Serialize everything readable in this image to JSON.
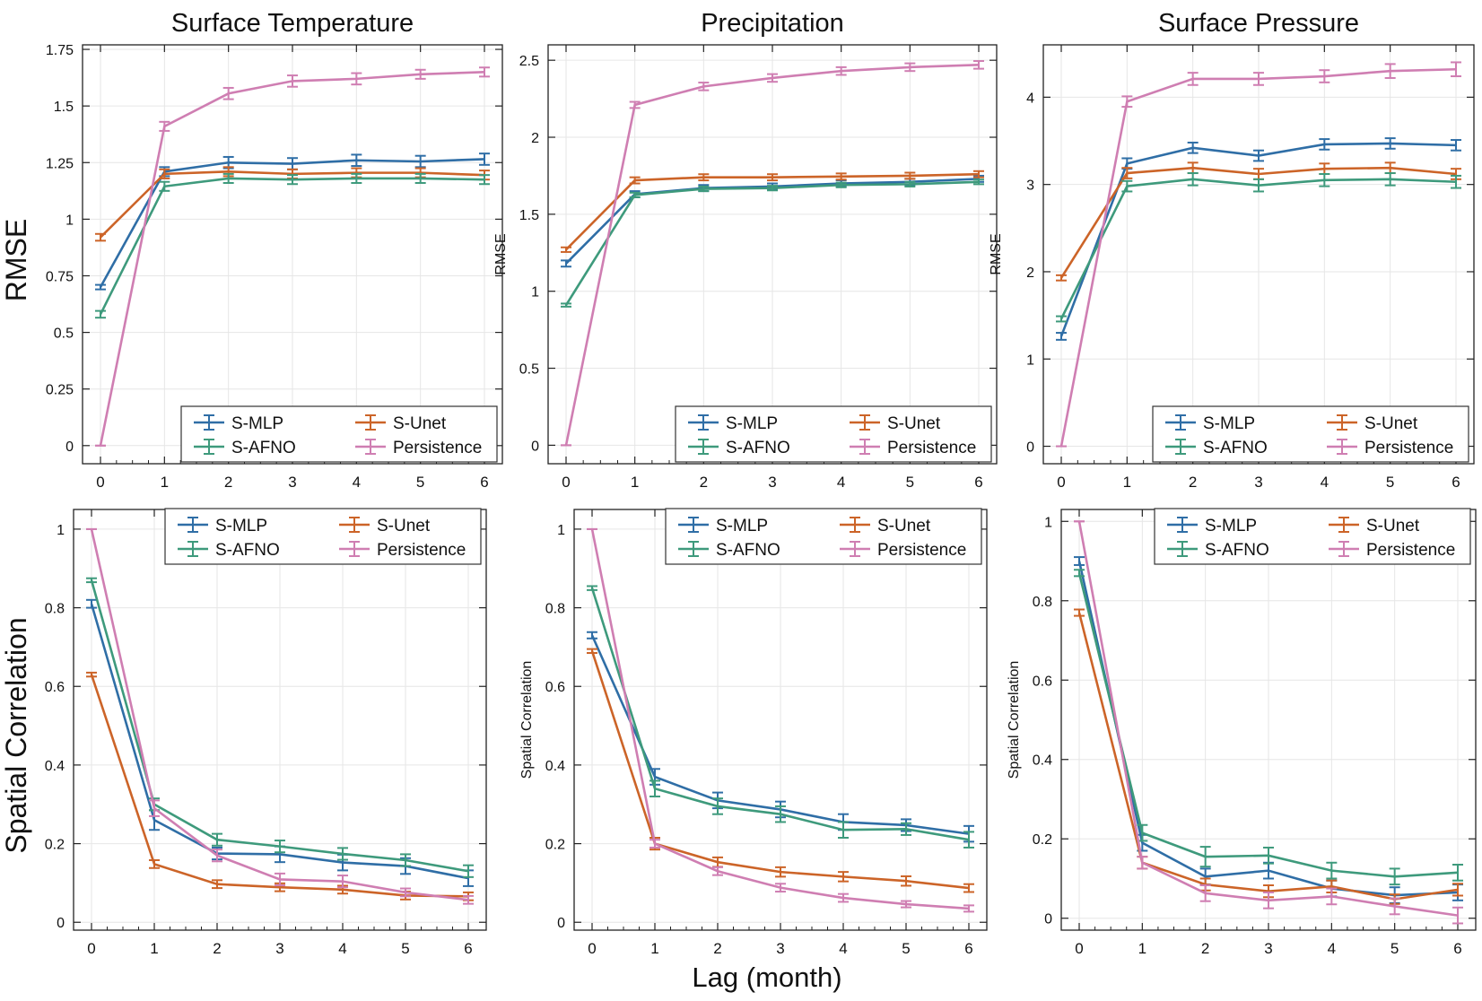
{
  "figure": {
    "row_label_top": "RMSE",
    "row_label_bottom": "Spatial Correlation",
    "xlabel": "Lag (month)"
  },
  "colors": {
    "S-MLP": "#2f6ea6",
    "S-Unet": "#cc6428",
    "S-AFNO": "#3e9a7c",
    "Persistence": "#cf7eb2"
  },
  "legend_labels": [
    "S-MLP",
    "S-Unet",
    "S-AFNO",
    "Persistence"
  ],
  "chart_data": [
    {
      "type": "line",
      "title": "Surface Temperature",
      "xlabel": "",
      "ylabel": "",
      "x": [
        0,
        1,
        2,
        3,
        4,
        5,
        6
      ],
      "ylim": [
        -0.08,
        1.77
      ],
      "yticks": [
        0,
        0.25,
        0.5,
        0.75,
        1,
        1.25,
        1.5,
        1.75
      ],
      "ytick_labels": [
        "0",
        "0.25",
        "0.5",
        "0.75",
        "1",
        "1.25",
        "1.5",
        "1.75"
      ],
      "legend": "bottom-right",
      "series": [
        {
          "name": "S-MLP",
          "values": [
            0.7,
            1.21,
            1.25,
            1.245,
            1.26,
            1.255,
            1.265
          ],
          "err": [
            0.01,
            0.02,
            0.025,
            0.025,
            0.025,
            0.025,
            0.025
          ]
        },
        {
          "name": "S-Unet",
          "values": [
            0.92,
            1.2,
            1.21,
            1.2,
            1.205,
            1.205,
            1.195
          ],
          "err": [
            0.015,
            0.02,
            0.02,
            0.02,
            0.02,
            0.02,
            0.02
          ]
        },
        {
          "name": "S-AFNO",
          "values": [
            0.58,
            1.145,
            1.18,
            1.175,
            1.18,
            1.18,
            1.175
          ],
          "err": [
            0.015,
            0.02,
            0.02,
            0.02,
            0.02,
            0.02,
            0.02
          ]
        },
        {
          "name": "Persistence",
          "values": [
            0.0,
            1.41,
            1.555,
            1.61,
            1.62,
            1.64,
            1.65
          ],
          "err": [
            0.0,
            0.02,
            0.025,
            0.025,
            0.025,
            0.02,
            0.02
          ]
        }
      ]
    },
    {
      "type": "line",
      "title": "Precipitation",
      "xlabel": "",
      "ylabel": "RMSE",
      "x": [
        0,
        1,
        2,
        3,
        4,
        5,
        6
      ],
      "ylim": [
        -0.12,
        2.6
      ],
      "yticks": [
        0,
        0.5,
        1,
        1.5,
        2,
        2.5
      ],
      "ytick_labels": [
        "0",
        "0.5",
        "1",
        "1.5",
        "2",
        "2.5"
      ],
      "legend": "bottom-right",
      "series": [
        {
          "name": "S-MLP",
          "values": [
            1.18,
            1.63,
            1.67,
            1.68,
            1.7,
            1.71,
            1.73
          ],
          "err": [
            0.02,
            0.02,
            0.02,
            0.02,
            0.02,
            0.02,
            0.02
          ]
        },
        {
          "name": "S-Unet",
          "values": [
            1.27,
            1.72,
            1.74,
            1.74,
            1.745,
            1.75,
            1.76
          ],
          "err": [
            0.015,
            0.02,
            0.02,
            0.02,
            0.02,
            0.02,
            0.02
          ]
        },
        {
          "name": "S-AFNO",
          "values": [
            0.91,
            1.625,
            1.665,
            1.67,
            1.69,
            1.695,
            1.71
          ],
          "err": [
            0.01,
            0.015,
            0.015,
            0.015,
            0.015,
            0.015,
            0.015
          ]
        },
        {
          "name": "Persistence",
          "values": [
            0.0,
            2.21,
            2.33,
            2.385,
            2.43,
            2.455,
            2.47
          ],
          "err": [
            0.0,
            0.02,
            0.025,
            0.025,
            0.025,
            0.025,
            0.025
          ]
        }
      ]
    },
    {
      "type": "line",
      "title": "Surface Pressure",
      "xlabel": "",
      "ylabel": "RMSE",
      "x": [
        0,
        1,
        2,
        3,
        4,
        5,
        6
      ],
      "ylim": [
        -0.2,
        4.6
      ],
      "yticks": [
        0,
        1,
        2,
        3,
        4
      ],
      "ytick_labels": [
        "0",
        "1",
        "2",
        "3",
        "4"
      ],
      "legend": "bottom-right",
      "series": [
        {
          "name": "S-MLP",
          "values": [
            1.26,
            3.24,
            3.42,
            3.33,
            3.46,
            3.47,
            3.45
          ],
          "err": [
            0.04,
            0.06,
            0.06,
            0.06,
            0.06,
            0.06,
            0.06
          ]
        },
        {
          "name": "S-Unet",
          "values": [
            1.93,
            3.13,
            3.19,
            3.12,
            3.18,
            3.19,
            3.12
          ],
          "err": [
            0.03,
            0.06,
            0.06,
            0.06,
            0.06,
            0.06,
            0.06
          ]
        },
        {
          "name": "S-AFNO",
          "values": [
            1.46,
            2.98,
            3.06,
            2.99,
            3.05,
            3.06,
            3.03
          ],
          "err": [
            0.03,
            0.06,
            0.07,
            0.07,
            0.07,
            0.07,
            0.07
          ]
        },
        {
          "name": "Persistence",
          "values": [
            0.0,
            3.95,
            4.21,
            4.21,
            4.24,
            4.3,
            4.32
          ],
          "err": [
            0.0,
            0.06,
            0.07,
            0.07,
            0.07,
            0.08,
            0.08
          ]
        }
      ]
    },
    {
      "type": "line",
      "title": "",
      "xlabel": "",
      "ylabel": "",
      "x": [
        0,
        1,
        2,
        3,
        4,
        5,
        6
      ],
      "ylim": [
        -0.02,
        1.05
      ],
      "yticks": [
        0,
        0.2,
        0.4,
        0.6,
        0.8,
        1
      ],
      "ytick_labels": [
        "0",
        "0.2",
        "0.4",
        "0.6",
        "0.8",
        "1"
      ],
      "legend": "top-right",
      "series": [
        {
          "name": "S-MLP",
          "values": [
            0.81,
            0.26,
            0.175,
            0.173,
            0.152,
            0.143,
            0.112
          ],
          "err": [
            0.01,
            0.025,
            0.015,
            0.02,
            0.02,
            0.02,
            0.02
          ]
        },
        {
          "name": "S-Unet",
          "values": [
            0.63,
            0.148,
            0.097,
            0.089,
            0.083,
            0.068,
            0.066
          ],
          "err": [
            0.005,
            0.01,
            0.01,
            0.01,
            0.01,
            0.01,
            0.01
          ]
        },
        {
          "name": "S-AFNO",
          "values": [
            0.87,
            0.3,
            0.21,
            0.193,
            0.174,
            0.158,
            0.13
          ],
          "err": [
            0.005,
            0.015,
            0.015,
            0.015,
            0.015,
            0.015,
            0.015
          ]
        },
        {
          "name": "Persistence",
          "values": [
            1.0,
            0.29,
            0.17,
            0.109,
            0.104,
            0.076,
            0.057
          ],
          "err": [
            0.0,
            0.02,
            0.015,
            0.015,
            0.015,
            0.01,
            0.01
          ]
        }
      ]
    },
    {
      "type": "line",
      "title": "",
      "xlabel": "",
      "ylabel": "Spatial Correlation",
      "x": [
        0,
        1,
        2,
        3,
        4,
        5,
        6
      ],
      "ylim": [
        -0.02,
        1.05
      ],
      "yticks": [
        0,
        0.2,
        0.4,
        0.6,
        0.8,
        1
      ],
      "ytick_labels": [
        "0",
        "0.2",
        "0.4",
        "0.6",
        "0.8",
        "1"
      ],
      "legend": "top-right",
      "series": [
        {
          "name": "S-MLP",
          "values": [
            0.73,
            0.37,
            0.31,
            0.287,
            0.255,
            0.247,
            0.225
          ],
          "err": [
            0.008,
            0.02,
            0.02,
            0.02,
            0.02,
            0.015,
            0.02
          ]
        },
        {
          "name": "S-Unet",
          "values": [
            0.69,
            0.2,
            0.153,
            0.128,
            0.116,
            0.105,
            0.087
          ],
          "err": [
            0.005,
            0.015,
            0.012,
            0.012,
            0.012,
            0.012,
            0.01
          ]
        },
        {
          "name": "S-AFNO",
          "values": [
            0.85,
            0.34,
            0.295,
            0.275,
            0.235,
            0.237,
            0.21
          ],
          "err": [
            0.005,
            0.02,
            0.02,
            0.02,
            0.02,
            0.015,
            0.02
          ]
        },
        {
          "name": "Persistence",
          "values": [
            1.0,
            0.2,
            0.13,
            0.088,
            0.062,
            0.046,
            0.035
          ],
          "err": [
            0.0,
            0.01,
            0.01,
            0.01,
            0.01,
            0.008,
            0.008
          ]
        }
      ]
    },
    {
      "type": "line",
      "title": "",
      "xlabel": "",
      "ylabel": "Spatial Correlation",
      "x": [
        0,
        1,
        2,
        3,
        4,
        5,
        6
      ],
      "ylim": [
        -0.03,
        1.03
      ],
      "yticks": [
        0,
        0.2,
        0.4,
        0.6,
        0.8,
        1
      ],
      "ytick_labels": [
        "0",
        "0.2",
        "0.4",
        "0.6",
        "0.8",
        "1"
      ],
      "legend": "top-right",
      "series": [
        {
          "name": "S-MLP",
          "values": [
            0.9,
            0.19,
            0.105,
            0.12,
            0.075,
            0.058,
            0.065
          ],
          "err": [
            0.01,
            0.02,
            0.02,
            0.02,
            0.02,
            0.02,
            0.02
          ]
        },
        {
          "name": "S-Unet",
          "values": [
            0.77,
            0.14,
            0.085,
            0.068,
            0.08,
            0.048,
            0.072
          ],
          "err": [
            0.008,
            0.015,
            0.015,
            0.015,
            0.015,
            0.012,
            0.015
          ]
        },
        {
          "name": "S-AFNO",
          "values": [
            0.87,
            0.215,
            0.155,
            0.158,
            0.12,
            0.105,
            0.115
          ],
          "err": [
            0.008,
            0.02,
            0.025,
            0.02,
            0.02,
            0.02,
            0.02
          ]
        },
        {
          "name": "Persistence",
          "values": [
            1.0,
            0.14,
            0.063,
            0.045,
            0.055,
            0.03,
            0.007
          ],
          "err": [
            0.0,
            0.015,
            0.02,
            0.02,
            0.02,
            0.02,
            0.02
          ]
        }
      ]
    }
  ]
}
